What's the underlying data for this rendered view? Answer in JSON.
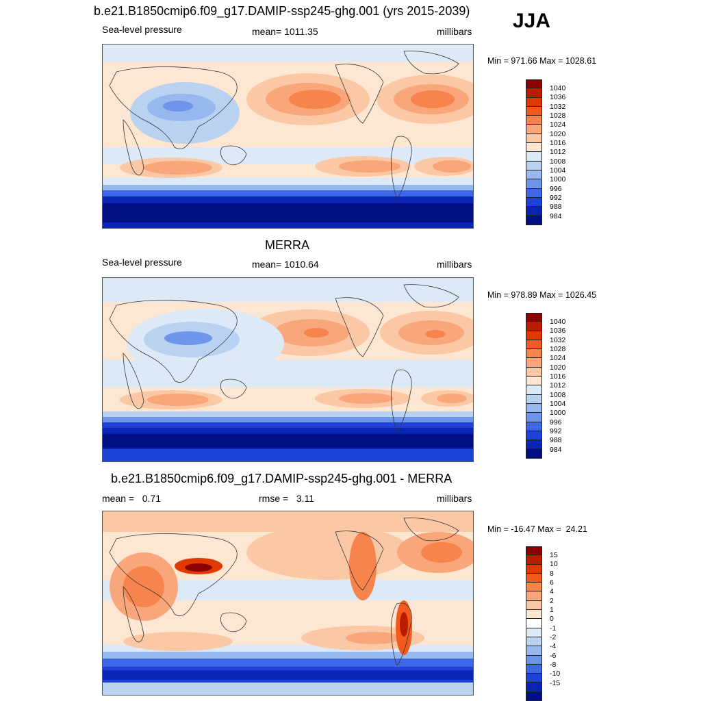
{
  "season": "JJA",
  "panels": [
    {
      "title": "b.e21.B1850cmip6.f09_g17.DAMIP-ssp245-ghg.001 (yrs 2015-2039)",
      "left_label": "Sea-level pressure",
      "center_label": "mean= 1011.35",
      "right_label": "millibars",
      "minmax": "Min = 971.66 Max = 1028.61",
      "colors": [
        "#8b0000",
        "#b81d00",
        "#e03a00",
        "#f25a1e",
        "#f7834d",
        "#f9a77a",
        "#fbc8a6",
        "#fde6d2",
        "#dce9f7",
        "#b9d2f2",
        "#97b8ee",
        "#6f95ea",
        "#3f68e6",
        "#1e42d6",
        "#0a25b5",
        "#000f82"
      ],
      "labels": [
        "1040",
        "1036",
        "1032",
        "1028",
        "1024",
        "1020",
        "1016",
        "1012",
        "1008",
        "1004",
        "1000",
        "996",
        "992",
        "988",
        "984"
      ]
    },
    {
      "title": "MERRA",
      "left_label": "Sea-level pressure",
      "center_label": "mean= 1010.64",
      "right_label": "millibars",
      "minmax": "Min = 978.89 Max = 1026.45",
      "colors": [
        "#8b0000",
        "#b81d00",
        "#e03a00",
        "#f25a1e",
        "#f7834d",
        "#f9a77a",
        "#fbc8a6",
        "#fde6d2",
        "#dce9f7",
        "#b9d2f2",
        "#97b8ee",
        "#6f95ea",
        "#3f68e6",
        "#1e42d6",
        "#0a25b5",
        "#000f82"
      ],
      "labels": [
        "1040",
        "1036",
        "1032",
        "1028",
        "1024",
        "1020",
        "1016",
        "1012",
        "1008",
        "1004",
        "1000",
        "996",
        "992",
        "988",
        "984"
      ]
    },
    {
      "title": "b.e21.B1850cmip6.f09_g17.DAMIP-ssp245-ghg.001 - MERRA",
      "left_label": "mean =   0.71",
      "center_label": "rmse =   3.11",
      "right_label": "millibars",
      "minmax": "Min = -16.47 Max =  24.21",
      "colors": [
        "#8b0000",
        "#b81d00",
        "#e03a00",
        "#f25a1e",
        "#f7834d",
        "#f9a77a",
        "#fbc8a6",
        "#fde6d2",
        "#ffffff",
        "#dce9f7",
        "#b9d2f2",
        "#97b8ee",
        "#6f95ea",
        "#3f68e6",
        "#1e42d6",
        "#0a25b5",
        "#000f82"
      ],
      "labels": [
        "15",
        "10",
        "8",
        "6",
        "4",
        "2",
        "1",
        "0",
        "-1",
        "-2",
        "-4",
        "-6",
        "-8",
        "-10",
        "-15"
      ]
    }
  ]
}
